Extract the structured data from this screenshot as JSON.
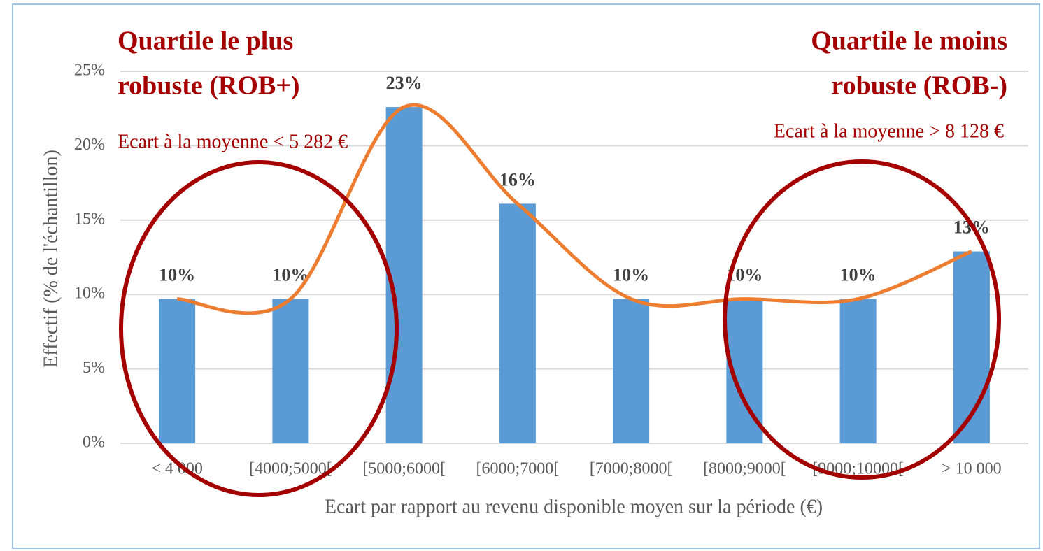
{
  "chart_data": {
    "type": "bar",
    "categories": [
      "< 4 000",
      "[4000;5000[",
      "[5000;6000[",
      "[6000;7000[",
      "[7000;8000[",
      "[8000;9000[",
      "[9000;10000[",
      "> 10 000"
    ],
    "values": [
      9.7,
      9.7,
      22.6,
      16.1,
      9.7,
      9.7,
      9.7,
      12.9
    ],
    "value_labels": [
      "10%",
      "10%",
      "23%",
      "16%",
      "10%",
      "10%",
      "10%",
      "13%"
    ],
    "color": "#5b9bd5",
    "line_color": "#ed7d31",
    "ylim": [
      0,
      25
    ],
    "yticks": [
      {
        "value": 0,
        "label": "0%"
      },
      {
        "value": 5,
        "label": "5%"
      },
      {
        "value": 10,
        "label": "10%"
      },
      {
        "value": 15,
        "label": "15%"
      },
      {
        "value": 20,
        "label": "20%"
      },
      {
        "value": 25,
        "label": "25%"
      }
    ],
    "grid": true,
    "x_label": "Ecart par rapport au revenu disponible moyen sur la période (€)",
    "y_label": "Effectif (% de l'échantillon)",
    "annotations": [
      {
        "title": [
          "Quartile le plus",
          "robuste (ROB+)"
        ],
        "text": "Ecart à la moyenne < 5 282 €"
      },
      {
        "title": [
          "Quartile le moins",
          "robuste (ROB-)"
        ],
        "text": "Ecart à la moyenne > 8 128 €"
      }
    ]
  }
}
